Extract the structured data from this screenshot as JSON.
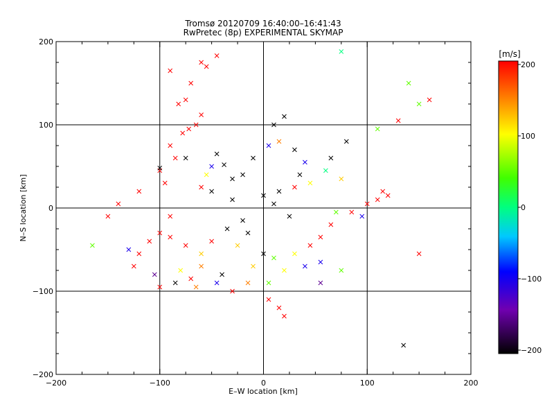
{
  "chart_data": {
    "type": "scatter",
    "title": "Tromsø 20120709 16:40:00–16:41:43",
    "subtitle": "RwPretec (8p) EXPERIMENTAL SKYMAP",
    "xlabel": "E–W location [km]",
    "ylabel": "N–S location [km]",
    "xlim": [
      -200,
      200
    ],
    "ylim": [
      -200,
      200
    ],
    "xticks": [
      "−200",
      "−100",
      "0",
      "100",
      "200"
    ],
    "yticks": [
      "−200",
      "−100",
      "0",
      "100",
      "200"
    ],
    "grid": true,
    "colorbar": {
      "label": "[m/s]",
      "min": -200,
      "max": 200,
      "ticks": [
        "200",
        "100",
        "0",
        "−100",
        "−200"
      ]
    },
    "crosses": [
      [
        75,
        188,
        0
      ],
      [
        -90,
        165,
        200
      ],
      [
        -45,
        183,
        200
      ],
      [
        -55,
        170,
        200
      ],
      [
        -60,
        175,
        200
      ],
      [
        -70,
        150,
        200
      ],
      [
        -82,
        125,
        200
      ],
      [
        -75,
        130,
        200
      ],
      [
        -60,
        112,
        200
      ],
      [
        -65,
        100,
        200
      ],
      [
        -72,
        95,
        200
      ],
      [
        -78,
        90,
        200
      ],
      [
        -90,
        75,
        200
      ],
      [
        -85,
        60,
        200
      ],
      [
        -100,
        45,
        200
      ],
      [
        -95,
        30,
        200
      ],
      [
        -75,
        60,
        -200
      ],
      [
        -100,
        48,
        -200
      ],
      [
        -45,
        65,
        -200
      ],
      [
        -38,
        52,
        -200
      ],
      [
        -30,
        35,
        -200
      ],
      [
        -20,
        40,
        -200
      ],
      [
        -55,
        40,
        100
      ],
      [
        -60,
        25,
        200
      ],
      [
        -50,
        20,
        -200
      ],
      [
        -30,
        10,
        -200
      ],
      [
        -10,
        60,
        -200
      ],
      [
        0,
        15,
        -200
      ],
      [
        10,
        5,
        -200
      ],
      [
        15,
        20,
        -200
      ],
      [
        25,
        -10,
        -200
      ],
      [
        30,
        25,
        200
      ],
      [
        35,
        40,
        -200
      ],
      [
        45,
        30,
        100
      ],
      [
        40,
        55,
        -100
      ],
      [
        5,
        75,
        -100
      ],
      [
        10,
        100,
        -200
      ],
      [
        15,
        80,
        150
      ],
      [
        20,
        110,
        -200
      ],
      [
        30,
        70,
        -200
      ],
      [
        -35,
        -25,
        -200
      ],
      [
        -20,
        -15,
        -200
      ],
      [
        -15,
        -30,
        -200
      ],
      [
        -25,
        -45,
        120
      ],
      [
        -50,
        -40,
        200
      ],
      [
        -60,
        -55,
        120
      ],
      [
        -75,
        -45,
        200
      ],
      [
        -90,
        -35,
        200
      ],
      [
        -100,
        -30,
        200
      ],
      [
        -110,
        -40,
        200
      ],
      [
        -120,
        -55,
        200
      ],
      [
        -125,
        -70,
        200
      ],
      [
        -105,
        -80,
        -150
      ],
      [
        -85,
        -90,
        -200
      ],
      [
        -70,
        -85,
        200
      ],
      [
        -60,
        -70,
        150
      ],
      [
        -40,
        -80,
        -200
      ],
      [
        -30,
        -100,
        200
      ],
      [
        -10,
        -70,
        120
      ],
      [
        0,
        -55,
        -200
      ],
      [
        10,
        -60,
        50
      ],
      [
        20,
        -75,
        100
      ],
      [
        30,
        -55,
        100
      ],
      [
        45,
        -45,
        200
      ],
      [
        55,
        -35,
        200
      ],
      [
        65,
        -20,
        200
      ],
      [
        70,
        -5,
        50
      ],
      [
        85,
        -5,
        200
      ],
      [
        95,
        -10,
        -100
      ],
      [
        100,
        5,
        200
      ],
      [
        110,
        10,
        200
      ],
      [
        115,
        20,
        200
      ],
      [
        120,
        15,
        200
      ],
      [
        75,
        35,
        120
      ],
      [
        65,
        60,
        -200
      ],
      [
        60,
        45,
        0
      ],
      [
        80,
        80,
        -200
      ],
      [
        -120,
        20,
        200
      ],
      [
        -140,
        5,
        200
      ],
      [
        -165,
        -45,
        50
      ],
      [
        -130,
        -50,
        -100
      ],
      [
        -90,
        -10,
        200
      ],
      [
        -50,
        50,
        -100
      ],
      [
        140,
        150,
        50
      ],
      [
        150,
        125,
        50
      ],
      [
        160,
        130,
        200
      ],
      [
        130,
        105,
        200
      ],
      [
        110,
        95,
        50
      ],
      [
        150,
        -55,
        200
      ],
      [
        75,
        -75,
        50
      ],
      [
        55,
        -65,
        -100
      ],
      [
        135,
        -165,
        -200
      ],
      [
        20,
        -130,
        200
      ],
      [
        15,
        -120,
        200
      ],
      [
        5,
        -110,
        200
      ],
      [
        -150,
        -10,
        200
      ],
      [
        -100,
        -95,
        200
      ],
      [
        -80,
        -75,
        100
      ],
      [
        -65,
        -95,
        150
      ],
      [
        -45,
        -90,
        -100
      ],
      [
        -15,
        -90,
        150
      ],
      [
        5,
        -90,
        50
      ],
      [
        40,
        -70,
        -100
      ],
      [
        55,
        -90,
        -150
      ]
    ]
  }
}
